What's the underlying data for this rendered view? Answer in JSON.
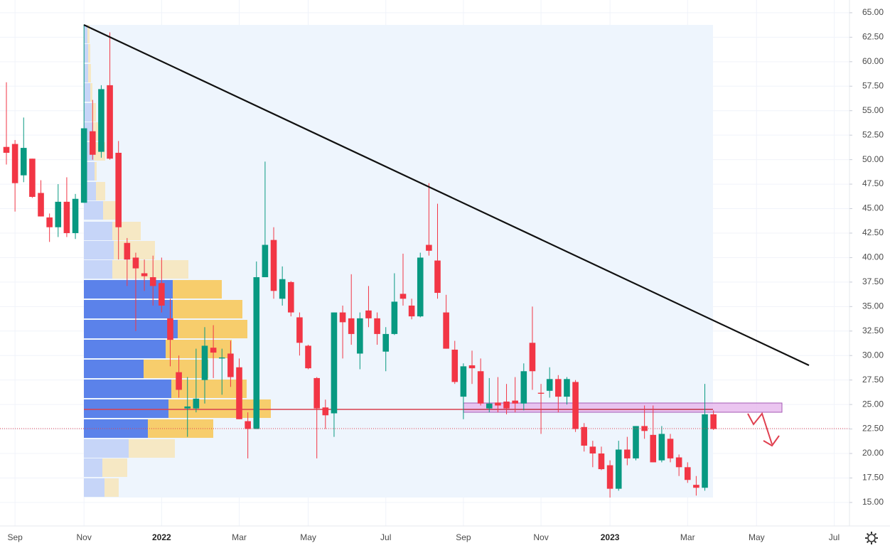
{
  "chart_data": {
    "type": "candlestick",
    "up_color": "#089981",
    "down_color": "#f23645",
    "grid": true,
    "ylim": [
      12.6,
      66.3
    ],
    "yticks": [
      {
        "value": 15,
        "label": "15.00"
      },
      {
        "value": 17.5,
        "label": "17.50"
      },
      {
        "value": 20,
        "label": "20.00"
      },
      {
        "value": 22.5,
        "label": "22.50"
      },
      {
        "value": 25,
        "label": "25.00"
      },
      {
        "value": 27.5,
        "label": "27.50"
      },
      {
        "value": 30,
        "label": "30.00"
      },
      {
        "value": 32.5,
        "label": "32.50"
      },
      {
        "value": 35,
        "label": "35.00"
      },
      {
        "value": 37.5,
        "label": "37.50"
      },
      {
        "value": 40,
        "label": "40.00"
      },
      {
        "value": 42.5,
        "label": "42.50"
      },
      {
        "value": 45,
        "label": "45.00"
      },
      {
        "value": 47.5,
        "label": "47.50"
      },
      {
        "value": 50,
        "label": "50.00"
      },
      {
        "value": 52.5,
        "label": "52.50"
      },
      {
        "value": 55,
        "label": "55.00"
      },
      {
        "value": 57.5,
        "label": "57.50"
      },
      {
        "value": 60,
        "label": "60.00"
      },
      {
        "value": 62.5,
        "label": "62.50"
      },
      {
        "value": 65,
        "label": "65.00"
      }
    ],
    "categories": [
      null,
      "Sep",
      null,
      null,
      null,
      null,
      null,
      null,
      null,
      "Nov",
      null,
      null,
      null,
      null,
      null,
      null,
      null,
      null,
      "2022",
      null,
      null,
      null,
      null,
      null,
      null,
      null,
      null,
      "Mar",
      null,
      null,
      null,
      null,
      null,
      null,
      null,
      "May",
      null,
      null,
      null,
      null,
      null,
      null,
      null,
      null,
      "Jul",
      null,
      null,
      null,
      null,
      null,
      null,
      null,
      null,
      "Sep",
      null,
      null,
      null,
      null,
      null,
      null,
      null,
      null,
      "Nov",
      null,
      null,
      null,
      null,
      null,
      null,
      null,
      "2023",
      null,
      null,
      null,
      null,
      null,
      null,
      null,
      null,
      "Mar",
      null,
      null,
      null,
      null,
      null,
      null,
      null,
      "May",
      null,
      null,
      null,
      null,
      null,
      null,
      null,
      null,
      "Jul"
    ],
    "open": [
      51.3,
      51.6,
      48.4,
      50.1,
      46.6,
      44.1,
      43.1,
      45.7,
      42.5,
      45.6,
      52.9,
      50.8,
      57.6,
      50.7,
      41.5,
      40.0,
      38.4,
      38.0,
      37.4,
      33.8,
      28.3,
      24.6,
      24.6,
      27.5,
      30.8,
      29.7,
      30.2,
      28.8,
      23.3,
      22.5,
      38.0,
      41.8,
      35.8,
      37.5,
      33.9,
      31.0,
      27.7,
      24.7,
      24.1,
      34.4,
      33.8,
      30.2,
      34.6,
      33.8,
      30.4,
      32.2,
      36.3,
      35.1,
      34.0,
      41.3,
      39.7,
      34.4,
      30.6,
      25.8,
      29.0,
      28.4,
      24.6,
      25.2,
      25.3,
      25.4,
      25.1,
      31.3,
      26.2,
      26.4,
      27.6,
      25.8,
      27.3,
      22.7,
      20.7,
      20.0,
      18.8,
      16.4,
      20.4,
      19.5,
      22.8,
      21.9,
      19.3,
      21.5,
      19.6,
      18.6,
      16.8,
      16.5,
      24.0,
      null,
      null,
      null,
      null,
      null,
      null,
      null,
      null,
      null,
      null,
      null,
      null,
      null,
      null
    ],
    "high": [
      57.9,
      52.0,
      54.3,
      50.1,
      47.9,
      44.5,
      47.5,
      48.2,
      46.5,
      63.8,
      56.1,
      57.6,
      63.0,
      51.9,
      42.0,
      40.5,
      39.8,
      40.2,
      40.0,
      35.8,
      30.0,
      27.8,
      30.7,
      32.9,
      33.1,
      30.7,
      31.5,
      29.7,
      24.2,
      39.6,
      49.8,
      43.1,
      39.1,
      37.6,
      34.4,
      31.1,
      27.8,
      25.5,
      34.4,
      35.1,
      38.3,
      34.4,
      37.1,
      34.4,
      32.9,
      38.4,
      40.4,
      35.8,
      40.5,
      47.6,
      45.5,
      36.2,
      31.5,
      29.2,
      30.5,
      29.7,
      27.7,
      27.8,
      27.1,
      27.8,
      29.2,
      35.0,
      27.1,
      28.8,
      28.0,
      27.8,
      27.5,
      23.1,
      21.3,
      20.7,
      19.3,
      21.3,
      21.7,
      22.8,
      24.9,
      24.9,
      22.8,
      22.0,
      19.9,
      19.1,
      17.7,
      27.1,
      24.4,
      null,
      null,
      null,
      null,
      null,
      null,
      null,
      null,
      null,
      null,
      null,
      null,
      null,
      null
    ],
    "low": [
      49.5,
      44.7,
      47.7,
      46.1,
      44.2,
      41.6,
      42.1,
      42.1,
      41.9,
      45.6,
      50.0,
      50.2,
      50.0,
      39.8,
      37.1,
      32.5,
      36.6,
      35.1,
      34.4,
      28.9,
      25.7,
      21.7,
      24.2,
      25.1,
      27.7,
      26.0,
      26.8,
      23.5,
      19.5,
      22.5,
      38.0,
      35.8,
      35.1,
      34.0,
      30.0,
      28.6,
      19.5,
      22.5,
      21.7,
      29.7,
      31.1,
      28.6,
      32.9,
      31.1,
      28.4,
      32.1,
      35.1,
      33.7,
      33.9,
      40.2,
      35.8,
      30.7,
      27.1,
      23.5,
      27.1,
      24.9,
      24.2,
      24.2,
      24.0,
      24.2,
      24.4,
      26.5,
      22.0,
      25.7,
      24.2,
      25.0,
      22.2,
      20.2,
      18.6,
      18.3,
      15.5,
      16.2,
      18.8,
      19.3,
      21.5,
      19.1,
      19.1,
      19.1,
      17.7,
      17.0,
      15.7,
      16.2,
      22.4,
      null,
      null,
      null,
      null,
      null,
      null,
      null,
      null,
      null,
      null,
      null,
      null,
      null,
      null
    ],
    "close": [
      50.7,
      47.6,
      51.2,
      46.2,
      44.2,
      43.1,
      45.7,
      42.5,
      46.0,
      53.2,
      50.5,
      57.2,
      50.1,
      43.1,
      39.8,
      38.9,
      38.1,
      37.1,
      35.1,
      31.6,
      26.5,
      24.8,
      25.6,
      31.0,
      30.3,
      29.8,
      27.8,
      23.5,
      22.5,
      38.0,
      41.3,
      36.6,
      37.8,
      34.4,
      31.3,
      28.7,
      24.6,
      23.9,
      34.4,
      33.4,
      32.2,
      33.8,
      33.8,
      32.2,
      32.2,
      35.5,
      35.8,
      34.0,
      40.0,
      40.7,
      36.4,
      30.7,
      27.3,
      28.9,
      28.7,
      25.1,
      25.1,
      24.9,
      24.6,
      25.1,
      28.4,
      28.4,
      26.1,
      27.6,
      25.8,
      27.6,
      22.5,
      20.8,
      20.0,
      18.4,
      16.4,
      20.4,
      19.5,
      22.8,
      22.3,
      19.1,
      22.0,
      19.5,
      18.6,
      17.3,
      16.5,
      24.0,
      22.5,
      null,
      null,
      null,
      null,
      null,
      null,
      null,
      null,
      null,
      null,
      null,
      null,
      null,
      null
    ]
  }
}
